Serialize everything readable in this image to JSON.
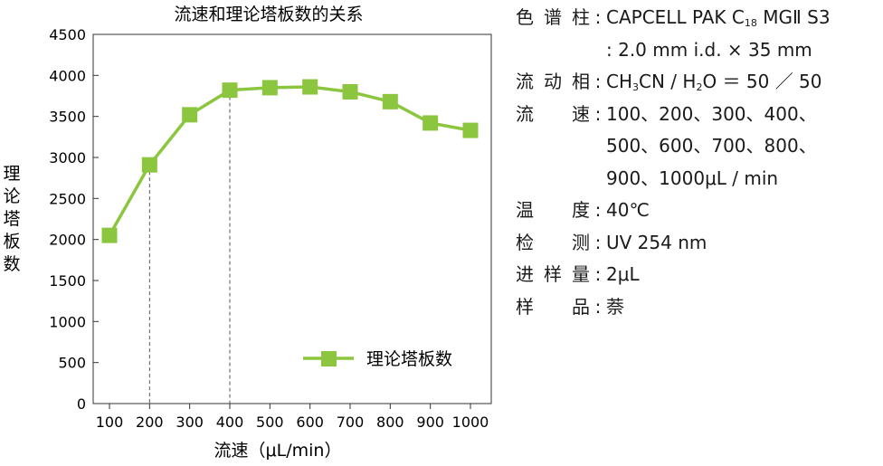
{
  "chart_data": {
    "type": "line",
    "title": "流速和理论塔板数的关系",
    "xlabel": "流速（μL/min）",
    "ylabel": "理论塔板数",
    "categories": [
      "100",
      "200",
      "300",
      "400",
      "500",
      "600",
      "700",
      "800",
      "900",
      "1000"
    ],
    "series": [
      {
        "name": "理论塔板数",
        "values": [
          2050,
          2910,
          3520,
          3820,
          3850,
          3860,
          3800,
          3680,
          3420,
          3330
        ]
      }
    ],
    "ylim": [
      0,
      4500
    ],
    "yticks": [
      "0",
      "500",
      "1000",
      "1500",
      "2000",
      "2500",
      "3000",
      "3500",
      "4000",
      "4500"
    ],
    "reference_lines_at": [
      "200",
      "400"
    ],
    "grid": false,
    "legend": "bottom-right",
    "color": "#8cc63f"
  },
  "conditions": {
    "column": {
      "label": [
        "色",
        "谱",
        "柱"
      ],
      "value": "CAPCELL PAK C",
      "sub": "18",
      "value_end": " MGⅡ S3",
      "line2": ": 2.0 mm i.d. × 35 mm"
    },
    "mobile_phase": {
      "label": [
        "流",
        "动",
        "相"
      ],
      "v1": "CH",
      "s1": "3",
      "v2": "CN / H",
      "s2": "2",
      "v3": "O ＝ 50 ／ 50"
    },
    "flow": {
      "label": [
        "流",
        "速"
      ],
      "value": "100、200、300、400、",
      "line2": "500、600、700、800、",
      "line3": "900、1000μL / min"
    },
    "temperature": {
      "label": [
        "温",
        "度"
      ],
      "value": "40℃"
    },
    "detection": {
      "label": [
        "检",
        "测"
      ],
      "value": "UV 254 nm"
    },
    "injection": {
      "label": [
        "进",
        "样",
        "量"
      ],
      "value": "2μL"
    },
    "sample": {
      "label": [
        "样",
        "品"
      ],
      "value": "萘"
    },
    "colon": ":"
  }
}
